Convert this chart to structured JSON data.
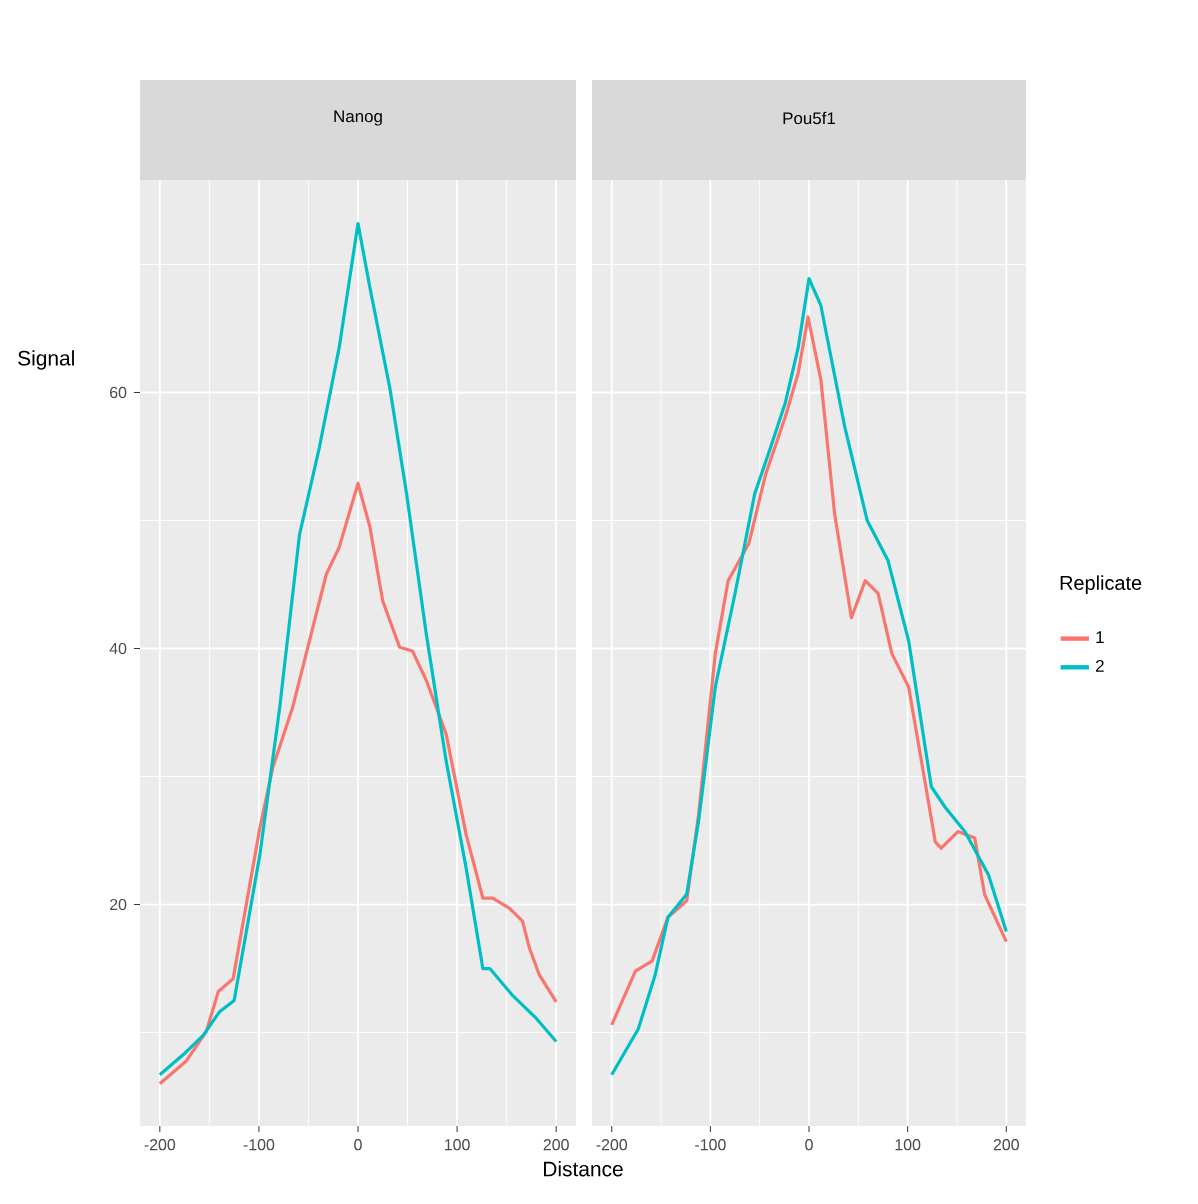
{
  "chart_data": [
    {
      "type": "line",
      "title": "Nanog",
      "xlabel": "Distance",
      "ylabel": "Signal",
      "xlim": [
        -220,
        220
      ],
      "ylim": [
        2.7,
        76.6
      ],
      "xticks": [
        -200,
        -100,
        0,
        100,
        200
      ],
      "yticks": [
        20,
        40,
        60
      ],
      "grid": true,
      "series": [
        {
          "color": "#f8766d",
          "x": [
            -200,
            -173,
            -153,
            -141,
            -126,
            -99,
            -86,
            -66,
            -32,
            -19,
            0,
            12,
            25,
            42,
            55,
            69,
            89,
            109,
            126,
            136,
            153,
            166,
            173,
            183,
            200
          ],
          "values": [
            6,
            7.8,
            10.1,
            13.2,
            14.2,
            26,
            30.7,
            35.4,
            45.8,
            47.9,
            52.9,
            49.5,
            43.7,
            40.1,
            39.8,
            37.5,
            33.3,
            25.5,
            20.5,
            20.5,
            19.7,
            18.7,
            16.6,
            14.5,
            12.4
          ]
        },
        {
          "color": "#00bfc4",
          "x": [
            -200,
            -176,
            -156,
            -140,
            -125,
            -99,
            -79,
            -59,
            -39,
            -19,
            0,
            12,
            32,
            49,
            69,
            89,
            109,
            126,
            133,
            156,
            180,
            200
          ],
          "values": [
            6.7,
            8.3,
            9.8,
            11.6,
            12.5,
            23.9,
            35.4,
            48.9,
            55.7,
            63.5,
            73.2,
            68.2,
            60.4,
            52.1,
            41.1,
            31.2,
            22.9,
            15,
            15,
            12.9,
            11.1,
            9.3
          ]
        }
      ]
    },
    {
      "type": "line",
      "title": "Pou5f1",
      "xlim": [
        -220,
        220
      ],
      "ylim": [
        2.7,
        76.6
      ],
      "xticks": [
        -200,
        -100,
        0,
        100,
        200
      ],
      "yticks": [
        20,
        40,
        60
      ],
      "grid": true,
      "tick_labels": "x",
      "legend": "right",
      "legend_title": "Replicate",
      "series": [
        {
          "name": "1",
          "color": "#f8766d",
          "x": [
            -200,
            -176,
            -159,
            -143,
            -124,
            -112,
            -95,
            -82,
            -61,
            -44,
            -24,
            -11,
            -1,
            12,
            26,
            43,
            57,
            70,
            84,
            101,
            114,
            128,
            134,
            151,
            168,
            178,
            200
          ],
          "values": [
            10.6,
            14.8,
            15.6,
            19,
            20.3,
            27,
            39.6,
            45.3,
            48.2,
            53.6,
            58.1,
            61.5,
            65.9,
            61,
            50.5,
            42.4,
            45.3,
            44.3,
            39.6,
            37,
            31.2,
            24.9,
            24.4,
            25.7,
            25.2,
            20.8,
            17.1
          ]
        },
        {
          "name": "2",
          "color": "#00bfc4",
          "x": [
            -200,
            -173,
            -156,
            -143,
            -124,
            -112,
            -95,
            -75,
            -55,
            -39,
            -24,
            -11,
            0,
            12,
            36,
            59,
            80,
            101,
            124,
            138,
            158,
            182,
            200
          ],
          "values": [
            6.7,
            10.3,
            14.5,
            19,
            20.8,
            26.5,
            37,
            44.3,
            52.1,
            55.7,
            59.2,
            63.5,
            68.9,
            66.8,
            57.4,
            50,
            46.9,
            40.6,
            29.2,
            27.6,
            25.7,
            22.3,
            17.9
          ]
        }
      ]
    }
  ]
}
